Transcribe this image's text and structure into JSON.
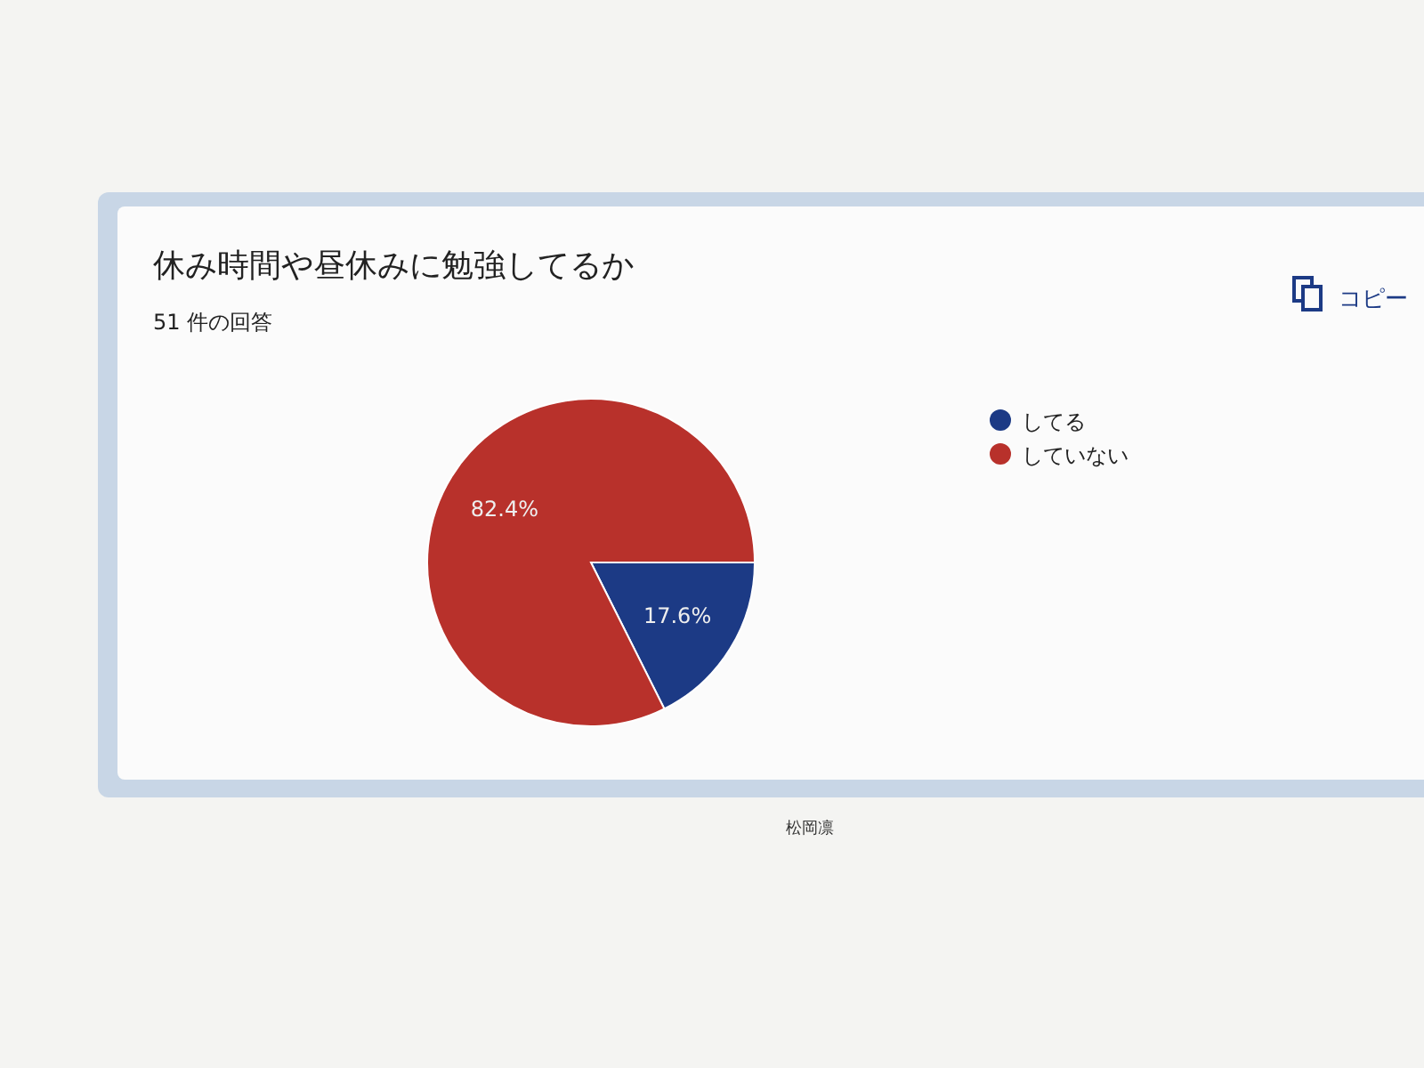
{
  "chart_data": {
    "type": "pie",
    "title": "休み時間や昼休みに勉強してるか",
    "subtitle": "51 件の回答",
    "categories": [
      "してる",
      "していない"
    ],
    "values": [
      17.6,
      82.4
    ],
    "colors": [
      "#1c3a85",
      "#b8312b"
    ],
    "value_labels": [
      "17.6%",
      "82.4%"
    ],
    "legend": "right",
    "annotations": [
      "コピー",
      "松岡凛"
    ]
  }
}
